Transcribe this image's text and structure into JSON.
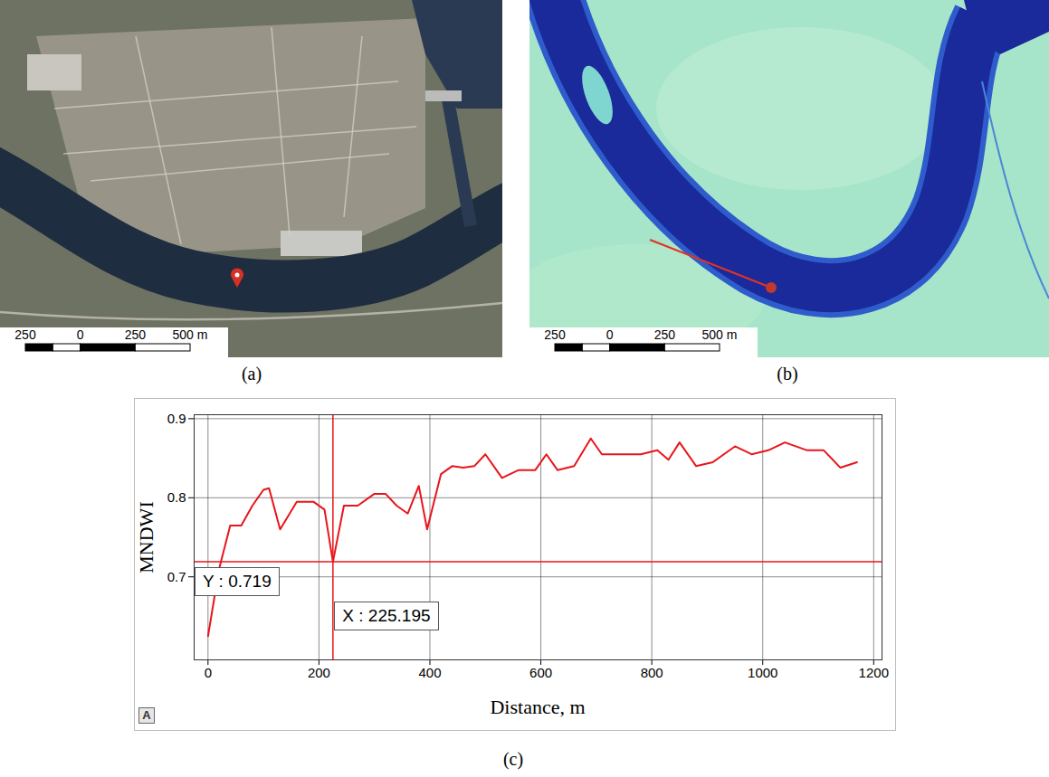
{
  "maps": [
    {
      "label": "(a)",
      "scale_bar": {
        "ticks": [
          {
            "value": -250,
            "label": "250"
          },
          0,
          250,
          {
            "value": 500,
            "label": "500 m"
          }
        ]
      }
    },
    {
      "label": "(b)",
      "scale_bar": {
        "ticks": [
          {
            "value": -250,
            "label": "250"
          },
          0,
          250,
          {
            "value": 500,
            "label": "500 m"
          }
        ]
      }
    }
  ],
  "chart_data": {
    "type": "line",
    "panel_label": "(c)",
    "xlabel": "Distance, m",
    "ylabel": "MNDWI",
    "x": [
      0,
      20,
      40,
      60,
      80,
      100,
      110,
      130,
      160,
      190,
      210,
      225.195,
      245,
      270,
      300,
      320,
      340,
      360,
      380,
      395,
      420,
      440,
      460,
      480,
      500,
      530,
      560,
      590,
      610,
      630,
      660,
      690,
      710,
      740,
      780,
      810,
      830,
      850,
      880,
      910,
      950,
      980,
      1010,
      1040,
      1080,
      1110,
      1140,
      1170
    ],
    "values": [
      0.625,
      0.71,
      0.765,
      0.765,
      0.79,
      0.81,
      0.812,
      0.76,
      0.795,
      0.795,
      0.785,
      0.719,
      0.79,
      0.79,
      0.805,
      0.805,
      0.79,
      0.78,
      0.815,
      0.76,
      0.83,
      0.84,
      0.838,
      0.84,
      0.855,
      0.825,
      0.835,
      0.835,
      0.855,
      0.835,
      0.84,
      0.875,
      0.855,
      0.855,
      0.855,
      0.86,
      0.848,
      0.87,
      0.84,
      0.845,
      0.865,
      0.855,
      0.86,
      0.87,
      0.86,
      0.86,
      0.838,
      0.845
    ],
    "color": "#e8151b",
    "xlim": [
      -25,
      1215
    ],
    "xticks": [
      0,
      200,
      400,
      600,
      800,
      1000,
      1200
    ],
    "ylim": [
      0.595,
      0.905
    ],
    "yticks": [
      0.7,
      0.8,
      0.9
    ],
    "grid": true,
    "cursor": {
      "x": 225.195,
      "y": 0.719,
      "x_label": "X : 225.195",
      "y_label": "Y : 0.719"
    },
    "corner_mark": "A"
  }
}
